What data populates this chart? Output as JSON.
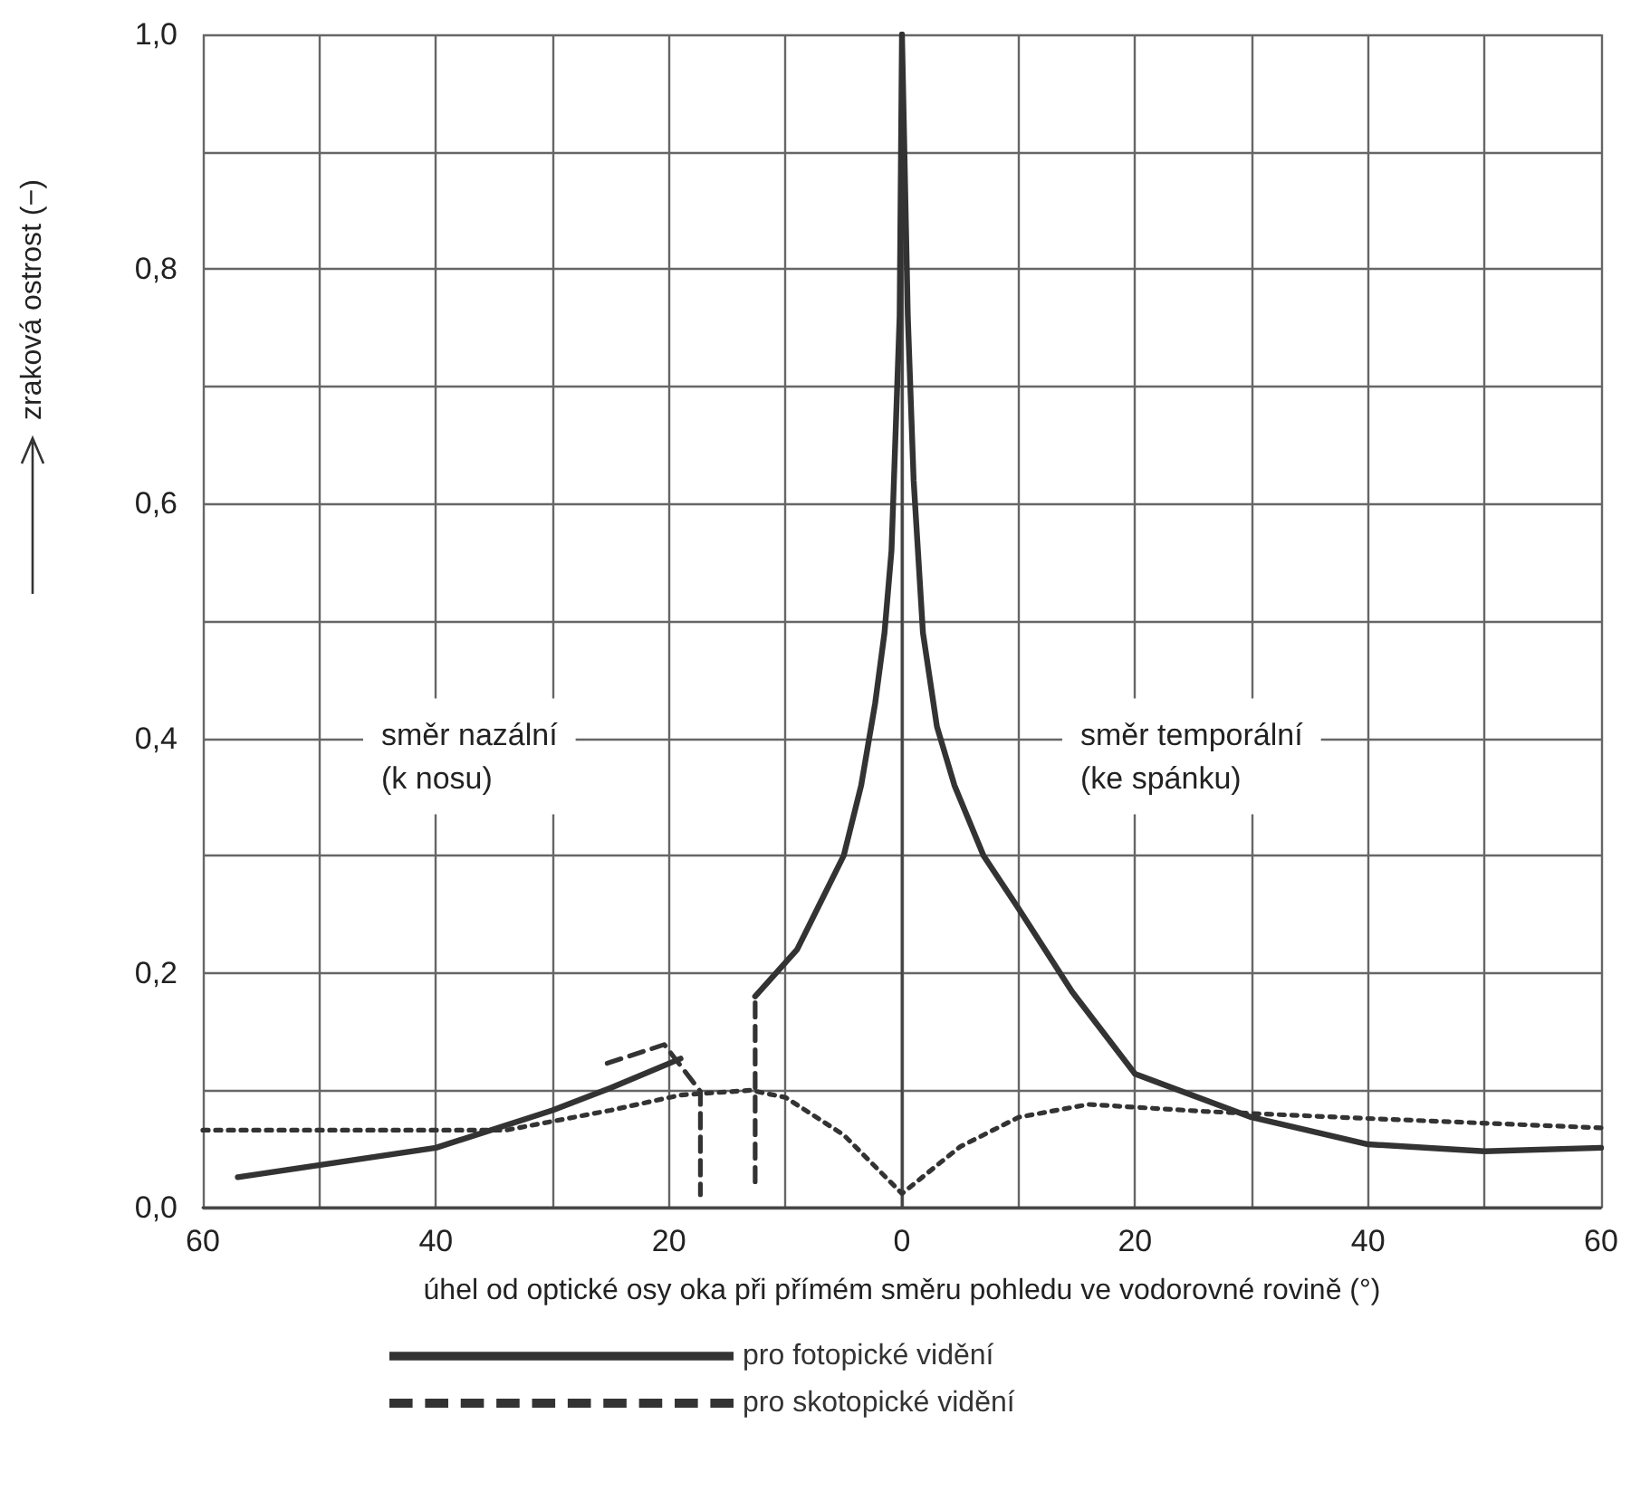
{
  "chart_data": {
    "type": "line",
    "xlabel": "úhel od optické osy oka při přímém směru pohledu ve vodorovné rovině (°)",
    "ylabel": "zraková ostrost (−)",
    "annotations": [
      "směr nazální\n(k nosu)",
      "směr temporální\n(ke spánku)"
    ],
    "xlim": [
      -60,
      60
    ],
    "xticks": [
      {
        "value": -60,
        "label": "60"
      },
      {
        "value": -50,
        "label": null
      },
      {
        "value": -40,
        "label": "40"
      },
      {
        "value": -30,
        "label": null
      },
      {
        "value": -20,
        "label": "20"
      },
      {
        "value": -10,
        "label": null
      },
      {
        "value": 0,
        "label": "0"
      },
      {
        "value": 10,
        "label": null
      },
      {
        "value": 20,
        "label": "20"
      },
      {
        "value": 30,
        "label": null
      },
      {
        "value": 40,
        "label": "40"
      },
      {
        "value": 50,
        "label": null
      },
      {
        "value": 60,
        "label": "60"
      }
    ],
    "ylim": [
      0,
      1
    ],
    "yticks": [
      {
        "value": 0,
        "label": "0,0"
      },
      {
        "value": 0.1,
        "label": null
      },
      {
        "value": 0.2,
        "label": "0,2"
      },
      {
        "value": 0.3,
        "label": null
      },
      {
        "value": 0.4,
        "label": "0,4"
      },
      {
        "value": 0.5,
        "label": null
      },
      {
        "value": 0.6,
        "label": "0,6"
      },
      {
        "value": 0.7,
        "label": null
      },
      {
        "value": 0.8,
        "label": "0,8"
      },
      {
        "value": 0.9,
        "label": null
      },
      {
        "value": 1,
        "label": "1,0"
      }
    ],
    "grid": true,
    "legend": "bottom",
    "marker": "none",
    "series": [
      {
        "name": "pro fotopické vidění",
        "color": "#333333",
        "line_style": "solid",
        "x": [
          -57,
          -40,
          -30,
          -25,
          -19,
          -16,
          -12.6,
          -9,
          -7,
          -5,
          -3.5,
          -2.3,
          -1.5,
          -0.9,
          -0.2,
          0,
          0.5,
          1,
          1.8,
          3,
          4.5,
          7,
          10,
          14.6,
          20,
          30,
          40,
          50,
          60
        ],
        "values": [
          0.026,
          0.051,
          0.083,
          0.102,
          0.127,
          null,
          0.18,
          0.22,
          0.26,
          0.3,
          0.36,
          0.43,
          0.49,
          0.56,
          0.76,
          1,
          0.76,
          0.62,
          0.49,
          0.41,
          0.36,
          0.3,
          0.255,
          0.184,
          0.114,
          0.077,
          0.054,
          0.048,
          0.051
        ]
      },
      {
        "name": "pro skotopické vidění",
        "color": "#333333",
        "line_style": "dotted",
        "x": [
          -60,
          -34,
          -25,
          -19,
          -13,
          -10,
          -5,
          -1,
          0,
          1,
          5,
          10,
          16,
          26,
          40,
          60
        ],
        "values": [
          0.066,
          0.066,
          0.083,
          0.096,
          0.1,
          0.094,
          0.062,
          0.022,
          0.012,
          0.02,
          0.052,
          0.077,
          0.088,
          0.082,
          0.076,
          0.068
        ]
      },
      {
        "color": "#333333",
        "line_style": "dashed",
        "x": [
          -25.3,
          -20.4,
          -17.3,
          -17.3,
          -15,
          -12.6,
          -12.6
        ],
        "values": [
          0.123,
          0.139,
          0.099,
          0.011,
          null,
          0.022,
          0.18
        ]
      }
    ]
  }
}
